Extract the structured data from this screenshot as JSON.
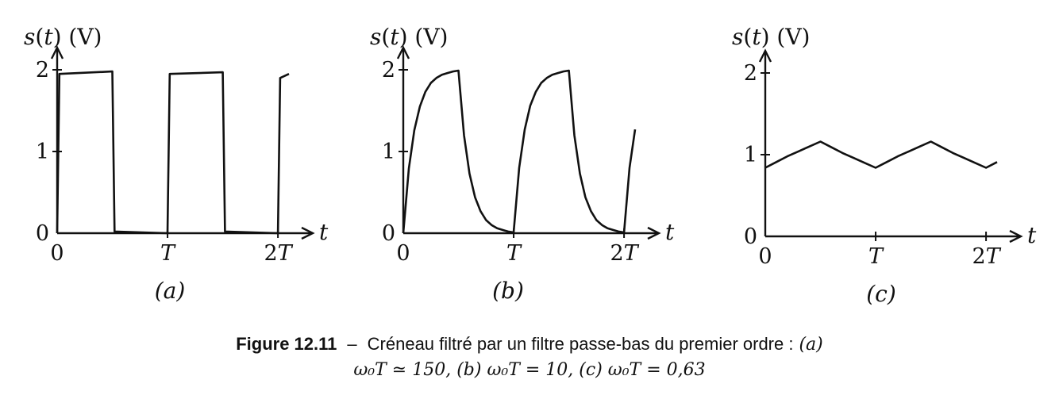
{
  "chart_data": [
    {
      "type": "line",
      "panel_label": "(a)",
      "ylabel": "s(t) (V)",
      "xlabel": "t",
      "x_tick_labels": [
        "0",
        "T",
        "2T"
      ],
      "x_ticks": [
        0,
        1,
        2
      ],
      "y_tick_labels": [
        "0",
        "1",
        "2"
      ],
      "y_ticks": [
        0,
        1,
        2
      ],
      "xlim": [
        0,
        2.1
      ],
      "ylim": [
        0,
        2
      ],
      "omega0T": 150,
      "series": [
        {
          "x": [
            0,
            0.02,
            0.5,
            0.52,
            1.0,
            1.02,
            1.5,
            1.52,
            2.0,
            2.02,
            2.1
          ],
          "y": [
            0,
            1.95,
            1.98,
            0.02,
            0.0,
            1.95,
            1.97,
            0.02,
            0.0,
            1.9,
            1.95
          ]
        }
      ]
    },
    {
      "type": "line",
      "panel_label": "(b)",
      "ylabel": "s(t) (V)",
      "xlabel": "t",
      "x_tick_labels": [
        "0",
        "T",
        "2T"
      ],
      "x_ticks": [
        0,
        1,
        2
      ],
      "y_tick_labels": [
        "0",
        "1",
        "2"
      ],
      "y_ticks": [
        0,
        1,
        2
      ],
      "xlim": [
        0,
        2.1
      ],
      "ylim": [
        0,
        2
      ],
      "omega0T": 10,
      "series": [
        {
          "x": [
            0,
            0.05,
            0.1,
            0.15,
            0.2,
            0.25,
            0.3,
            0.35,
            0.4,
            0.45,
            0.5,
            0.55,
            0.6,
            0.65,
            0.7,
            0.75,
            0.8,
            0.85,
            0.9,
            0.95,
            1.0,
            1.05,
            1.1,
            1.15,
            1.2,
            1.25,
            1.3,
            1.35,
            1.4,
            1.45,
            1.5,
            1.55,
            1.6,
            1.65,
            1.7,
            1.75,
            1.8,
            1.85,
            1.9,
            1.95,
            2.0,
            2.05,
            2.1
          ],
          "y": [
            0,
            0.79,
            1.26,
            1.55,
            1.73,
            1.84,
            1.9,
            1.94,
            1.96,
            1.98,
            1.99,
            1.2,
            0.73,
            0.44,
            0.27,
            0.16,
            0.1,
            0.06,
            0.04,
            0.02,
            0.01,
            0.8,
            1.27,
            1.56,
            1.73,
            1.84,
            1.9,
            1.94,
            1.96,
            1.98,
            1.99,
            1.2,
            0.73,
            0.44,
            0.27,
            0.16,
            0.1,
            0.06,
            0.04,
            0.02,
            0.01,
            0.8,
            1.27
          ]
        }
      ]
    },
    {
      "type": "line",
      "panel_label": "(c)",
      "ylabel": "s(t) (V)",
      "xlabel": "t",
      "x_tick_labels": [
        "0",
        "T",
        "2T"
      ],
      "x_ticks": [
        0,
        1,
        2
      ],
      "y_tick_labels": [
        "0",
        "1",
        "2"
      ],
      "y_ticks": [
        0,
        1,
        2
      ],
      "xlim": [
        0,
        2.1
      ],
      "ylim": [
        0,
        2
      ],
      "omega0T": 0.63,
      "series": [
        {
          "x": [
            0,
            0.1,
            0.2,
            0.3,
            0.4,
            0.5,
            0.6,
            0.7,
            0.8,
            0.9,
            1.0,
            1.1,
            1.2,
            1.3,
            1.4,
            1.5,
            1.6,
            1.7,
            1.8,
            1.9,
            2.0,
            2.1
          ],
          "y": [
            0.84,
            0.91,
            0.98,
            1.04,
            1.1,
            1.16,
            1.09,
            1.02,
            0.96,
            0.9,
            0.84,
            0.91,
            0.98,
            1.04,
            1.1,
            1.16,
            1.09,
            1.02,
            0.96,
            0.9,
            0.84,
            0.91
          ]
        }
      ]
    }
  ],
  "caption": {
    "label": "Figure 12.11",
    "separator": "–",
    "text": "Créneau filtré par un filtre passe-bas du premier ordre :",
    "item_a_label": "(a)",
    "item_a_math": "ω₀T ≃ 150,",
    "item_b_label": "(b)",
    "item_b_math": "ω₀T = 10,",
    "item_c_label": "(c)",
    "item_c_math": "ω₀T = 0,63"
  }
}
